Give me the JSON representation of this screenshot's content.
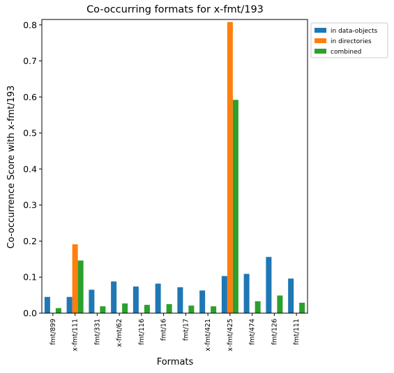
{
  "chart_data": {
    "type": "bar",
    "title": "Co-occurring formats for x-fmt/193",
    "xlabel": "Formats",
    "ylabel": "Co-occurrence Score with x-fmt/193",
    "categories": [
      "fmt/899",
      "x-fmt/111",
      "fmt/331",
      "x-fmt/62",
      "fmt/116",
      "fmt/16",
      "fmt/17",
      "x-fmt/421",
      "x-fmt/425",
      "fmt/474",
      "fmt/126",
      "fmt/111"
    ],
    "series": [
      {
        "name": "in data-objects",
        "color": "#1f77b4",
        "values": [
          0.045,
          0.045,
          0.065,
          0.088,
          0.074,
          0.082,
          0.072,
          0.063,
          0.103,
          0.109,
          0.156,
          0.096
        ]
      },
      {
        "name": "in directories",
        "color": "#ff7f0e",
        "values": [
          0,
          0.191,
          0,
          0,
          0,
          0,
          0,
          0,
          0.808,
          0,
          0,
          0
        ]
      },
      {
        "name": "combined",
        "color": "#2ca02c",
        "values": [
          0.014,
          0.146,
          0.019,
          0.027,
          0.023,
          0.025,
          0.021,
          0.019,
          0.592,
          0.033,
          0.049,
          0.029
        ]
      }
    ],
    "ylim": [
      0,
      0.815
    ],
    "yticks": [
      "0.0",
      "0.1",
      "0.2",
      "0.3",
      "0.4",
      "0.5",
      "0.6",
      "0.7",
      "0.8"
    ],
    "legend_position": "outside top-right",
    "grid": false
  }
}
